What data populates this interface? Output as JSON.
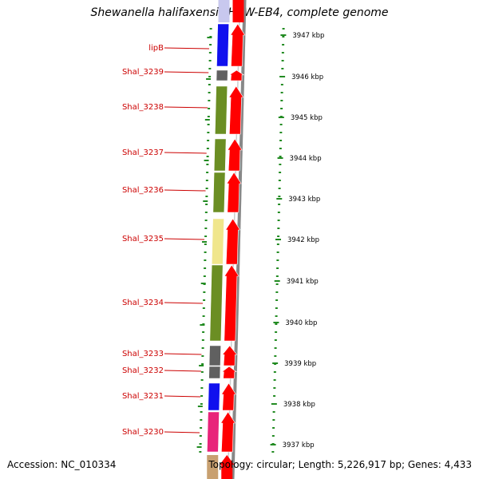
{
  "title": "Shewanella halifaxensis HAW-EB4, complete genome",
  "footer": {
    "accession": "Accession: NC_010334",
    "summary": "Topology: circular; Length: 5,226,917 bp; Genes: 4,433"
  },
  "colors": {
    "label_red": "#cc0000",
    "arrow_red": "#ff0000",
    "tick_green": "#228b22",
    "backbone_gray": "#888888"
  },
  "kbp_ticks": [
    "3947 kbp",
    "3946 kbp",
    "3945 kbp",
    "3944 kbp",
    "3943 kbp",
    "3942 kbp",
    "3941 kbp",
    "3940 kbp",
    "3939 kbp",
    "3938 kbp",
    "3937 kbp"
  ],
  "genes": [
    {
      "label": "lipB",
      "color": "#1010ee"
    },
    {
      "label": "Shal_3239",
      "color": "#606060"
    },
    {
      "label": "Shal_3238",
      "color": "#6b8e23"
    },
    {
      "label": "Shal_3237",
      "color": "#6b8e23"
    },
    {
      "label": "Shal_3236",
      "color": "#6b8e23"
    },
    {
      "label": "Shal_3235",
      "color": "#f0e68c"
    },
    {
      "label": "Shal_3234",
      "color": "#6b8e23"
    },
    {
      "label": "Shal_3233",
      "color": "#606060"
    },
    {
      "label": "Shal_3232",
      "color": "#606060"
    },
    {
      "label": "Shal_3231",
      "color": "#1010ee"
    },
    {
      "label": "Shal_3230",
      "color": "#e8247a"
    }
  ]
}
